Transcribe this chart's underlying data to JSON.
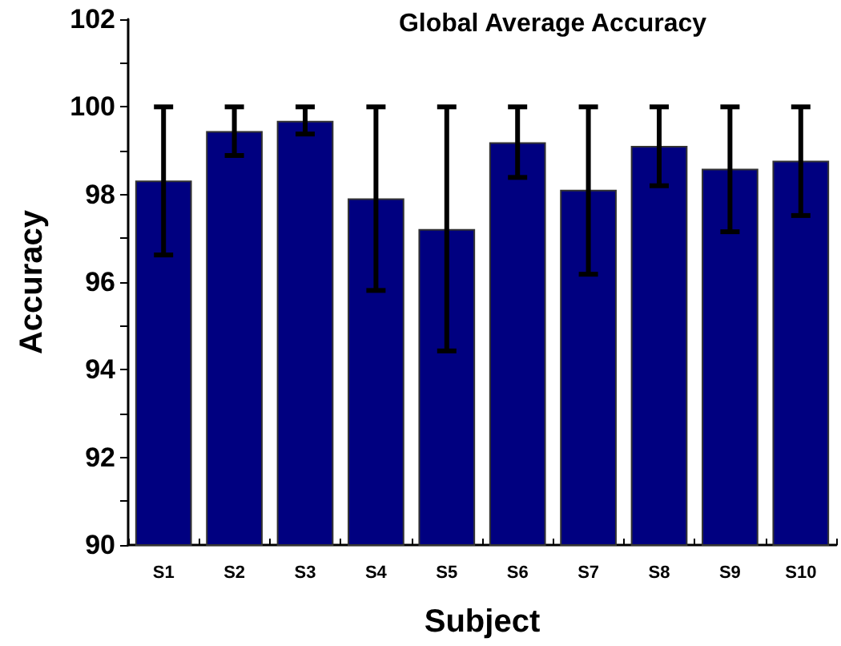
{
  "chart_data": {
    "type": "bar",
    "title": "Global Average Accuracy",
    "xlabel": "Subject",
    "ylabel": "Accuracy",
    "categories": [
      "S1",
      "S2",
      "S3",
      "S4",
      "S5",
      "S6",
      "S7",
      "S8",
      "S9",
      "S10"
    ],
    "values": [
      98.32,
      99.45,
      99.68,
      97.91,
      97.21,
      99.19,
      98.11,
      99.11,
      98.59,
      98.77
    ],
    "errors": [
      [
        96.62,
        100
      ],
      [
        98.89,
        100
      ],
      [
        99.38,
        100
      ],
      [
        95.81,
        100
      ],
      [
        94.43,
        100
      ],
      [
        98.39,
        100
      ],
      [
        96.18,
        100
      ],
      [
        98.2,
        100
      ],
      [
        97.15,
        100
      ],
      [
        97.52,
        100
      ]
    ],
    "color": "#000080",
    "ylim": [
      90,
      102
    ],
    "yticks": [
      90,
      {
        "value": 91,
        "label": null
      },
      92,
      {
        "value": 93,
        "label": null
      },
      94,
      {
        "value": 95,
        "label": null
      },
      96,
      {
        "value": 97,
        "label": null
      },
      98,
      {
        "value": 99,
        "label": null
      },
      100,
      {
        "value": 101,
        "label": null
      },
      102
    ],
    "grid": false
  }
}
